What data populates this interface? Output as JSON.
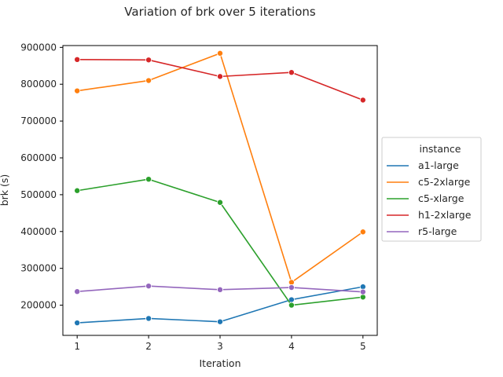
{
  "chart_data": {
    "type": "line",
    "title": "Variation of brk over 5 iterations",
    "xlabel": "Iteration",
    "ylabel": "brk (s)",
    "x": [
      1,
      2,
      3,
      4,
      5
    ],
    "xticks": [
      "1",
      "2",
      "3",
      "4",
      "5"
    ],
    "xlim": [
      0.8,
      5.2
    ],
    "ylim": [
      118000,
      905000
    ],
    "yticks": [
      200000,
      300000,
      400000,
      500000,
      600000,
      700000,
      800000,
      900000
    ],
    "ytick_labels": [
      "200000",
      "300000",
      "400000",
      "500000",
      "600000",
      "700000",
      "800000",
      "900000"
    ],
    "legend_title": "instance",
    "legend_position": "center-right outside",
    "series": [
      {
        "name": "a1-large",
        "color": "#1f77b4",
        "values": [
          152000,
          164000,
          155000,
          215000,
          250000
        ]
      },
      {
        "name": "c5-2xlarge",
        "color": "#ff7f0e",
        "values": [
          782000,
          810000,
          884000,
          262000,
          399000
        ]
      },
      {
        "name": "c5-xlarge",
        "color": "#2ca02c",
        "values": [
          511000,
          542000,
          479000,
          200000,
          222000
        ]
      },
      {
        "name": "h1-2xlarge",
        "color": "#d62728",
        "values": [
          867000,
          866000,
          821000,
          832000,
          757000
        ]
      },
      {
        "name": "r5-large",
        "color": "#9467bd",
        "values": [
          237000,
          252000,
          242000,
          248000,
          236000
        ]
      }
    ]
  }
}
